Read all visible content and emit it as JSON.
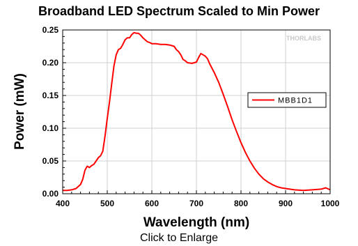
{
  "caption": "Click to Enlarge",
  "watermark": "THORLABS",
  "chart_data": {
    "type": "line",
    "title": "Broadband LED Spectrum Scaled to Min Power",
    "xlabel": "Wavelength (nm)",
    "ylabel": "Power (mW)",
    "xlim": [
      400,
      1000
    ],
    "ylim": [
      0,
      0.25
    ],
    "x_ticks": [
      400,
      500,
      600,
      700,
      800,
      900,
      1000
    ],
    "y_ticks": [
      "0.00",
      "0.05",
      "0.10",
      "0.15",
      "0.20",
      "0.25"
    ],
    "grid": true,
    "legend_position": "right",
    "series_color": "#ff0000",
    "series": [
      {
        "name": "MBB1D1",
        "x": [
          400,
          410,
          420,
          430,
          440,
          445,
          450,
          455,
          460,
          465,
          470,
          475,
          480,
          485,
          490,
          495,
          500,
          505,
          510,
          515,
          520,
          525,
          530,
          535,
          540,
          545,
          550,
          555,
          560,
          565,
          570,
          575,
          580,
          585,
          590,
          595,
          600,
          610,
          620,
          630,
          640,
          650,
          655,
          660,
          665,
          670,
          675,
          680,
          690,
          700,
          705,
          710,
          715,
          720,
          725,
          730,
          740,
          750,
          760,
          770,
          780,
          790,
          800,
          810,
          820,
          830,
          840,
          850,
          860,
          870,
          880,
          890,
          900,
          920,
          940,
          960,
          980,
          990,
          1000
        ],
        "y": [
          0.005,
          0.005,
          0.006,
          0.008,
          0.014,
          0.022,
          0.036,
          0.042,
          0.04,
          0.043,
          0.045,
          0.05,
          0.055,
          0.058,
          0.065,
          0.088,
          0.115,
          0.14,
          0.168,
          0.195,
          0.212,
          0.22,
          0.222,
          0.228,
          0.235,
          0.238,
          0.238,
          0.243,
          0.246,
          0.245,
          0.245,
          0.242,
          0.238,
          0.235,
          0.232,
          0.231,
          0.229,
          0.229,
          0.228,
          0.228,
          0.227,
          0.225,
          0.22,
          0.217,
          0.212,
          0.205,
          0.203,
          0.2,
          0.199,
          0.201,
          0.208,
          0.214,
          0.212,
          0.21,
          0.206,
          0.198,
          0.185,
          0.17,
          0.152,
          0.133,
          0.113,
          0.095,
          0.078,
          0.063,
          0.05,
          0.039,
          0.03,
          0.023,
          0.018,
          0.014,
          0.011,
          0.009,
          0.008,
          0.006,
          0.005,
          0.006,
          0.007,
          0.009,
          0.006
        ]
      }
    ]
  }
}
